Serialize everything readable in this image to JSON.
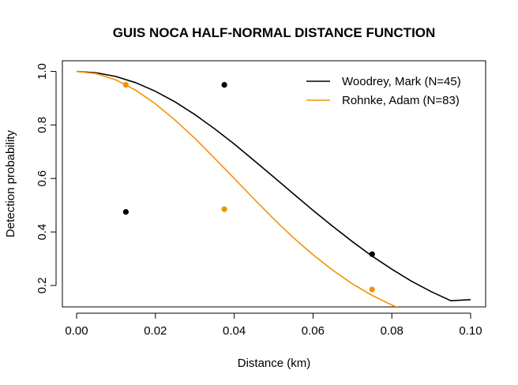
{
  "chart_data": {
    "type": "line",
    "title": "GUIS NOCA HALF-NORMAL DISTANCE FUNCTION",
    "xlabel": "Distance (km)",
    "ylabel": "Detection probability",
    "xlim": [
      0.0,
      0.1
    ],
    "ylim": [
      0.12,
      1.04
    ],
    "xticks": [
      "0.00",
      "0.02",
      "0.04",
      "0.06",
      "0.08",
      "0.10"
    ],
    "yticks": [
      "0.2",
      "0.4",
      "0.6",
      "0.8",
      "1.0"
    ],
    "legend_position": "top-right",
    "grid": false,
    "series": [
      {
        "name": "Woodrey,  Mark (N=45)",
        "color": "#000000",
        "curve": {
          "x": [
            0.0,
            0.005,
            0.01,
            0.015,
            0.02,
            0.025,
            0.03,
            0.035,
            0.04,
            0.045,
            0.05,
            0.055,
            0.06,
            0.065,
            0.07,
            0.075,
            0.08,
            0.085,
            0.09,
            0.095,
            0.1
          ],
          "y": [
            1.0,
            0.995,
            0.981,
            0.958,
            0.926,
            0.886,
            0.839,
            0.786,
            0.729,
            0.668,
            0.606,
            0.543,
            0.481,
            0.421,
            0.364,
            0.31,
            0.261,
            0.216,
            0.177,
            0.143,
            0.147
          ]
        },
        "points": {
          "x": [
            0.0125,
            0.0375,
            0.075
          ],
          "y": [
            0.475,
            0.95,
            0.317
          ]
        }
      },
      {
        "name": "Rohnke, Adam (N=83)",
        "color": "#f39200",
        "curve": {
          "x": [
            0.0,
            0.005,
            0.01,
            0.015,
            0.02,
            0.025,
            0.03,
            0.035,
            0.04,
            0.045,
            0.05,
            0.055,
            0.06,
            0.065,
            0.07,
            0.075,
            0.08,
            0.085,
            0.089
          ],
          "y": [
            1.0,
            0.992,
            0.968,
            0.93,
            0.879,
            0.818,
            0.75,
            0.676,
            0.6,
            0.524,
            0.449,
            0.379,
            0.315,
            0.257,
            0.206,
            0.163,
            0.127,
            0.097,
            0.112
          ]
        },
        "points": {
          "x": [
            0.0125,
            0.0375,
            0.075
          ],
          "y": [
            0.95,
            0.485,
            0.185
          ]
        }
      }
    ]
  }
}
